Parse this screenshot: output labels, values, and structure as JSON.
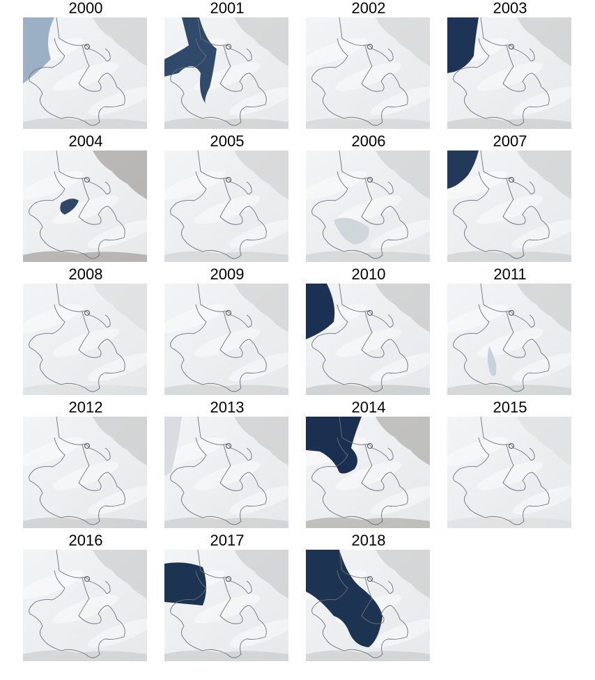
{
  "figure": {
    "panels": [
      {
        "year": "2000",
        "water_color": "#9bb0c4",
        "terrain_color": "#c9c9c9"
      },
      {
        "year": "2001",
        "water_color": "#2f4a6a",
        "terrain_color": "#c4c4c4"
      },
      {
        "year": "2002",
        "water_color": "#d8dde2",
        "terrain_color": "#cdcdcd"
      },
      {
        "year": "2003",
        "water_color": "#1d3456",
        "terrain_color": "#c2c2c2"
      },
      {
        "year": "2004",
        "water_color": "#2c4866",
        "terrain_color": "#8e8a87"
      },
      {
        "year": "2005",
        "water_color": "#c9d3dc",
        "terrain_color": "#cbcbcb"
      },
      {
        "year": "2006",
        "water_color": "#cfd6dc",
        "terrain_color": "#c8c8c8"
      },
      {
        "year": "2007",
        "water_color": "#22395a",
        "terrain_color": "#c6c6c6"
      },
      {
        "year": "2008",
        "water_color": "#dcdfe2",
        "terrain_color": "#d8d8d8"
      },
      {
        "year": "2009",
        "water_color": "#d6dbe0",
        "terrain_color": "#cacaca"
      },
      {
        "year": "2010",
        "water_color": "#1a3153",
        "terrain_color": "#bdbdbd"
      },
      {
        "year": "2011",
        "water_color": "#c8d2dc",
        "terrain_color": "#c7c7c7"
      },
      {
        "year": "2012",
        "water_color": "#d2d9df",
        "terrain_color": "#bfbfbf"
      },
      {
        "year": "2013",
        "water_color": "#d9dde1",
        "terrain_color": "#c3c3c3"
      },
      {
        "year": "2014",
        "water_color": "#1b3050",
        "terrain_color": "#9c9a98"
      },
      {
        "year": "2015",
        "water_color": "#e0e2e4",
        "terrain_color": "#dadada"
      },
      {
        "year": "2016",
        "water_color": "#d5dade",
        "terrain_color": "#c5c5c5"
      },
      {
        "year": "2017",
        "water_color": "#1c3352",
        "terrain_color": "#c3c3c3"
      },
      {
        "year": "2018",
        "water_color": "#1c3352",
        "terrain_color": "#c2c2c2"
      }
    ]
  }
}
